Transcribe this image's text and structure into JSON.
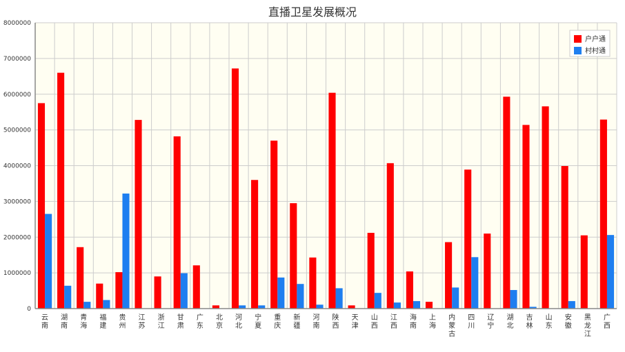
{
  "chart_data": {
    "type": "bar",
    "title": "直播卫星发展概况",
    "categories": [
      "云南",
      "湖南",
      "青海",
      "福建",
      "贵州",
      "江苏",
      "浙江",
      "甘肃",
      "广东",
      "北京",
      "河北",
      "宁夏",
      "重庆",
      "新疆",
      "河南",
      "陕西",
      "天津",
      "山西",
      "江西",
      "海南",
      "上海",
      "内蒙古",
      "四川",
      "辽宁",
      "湖北",
      "吉林",
      "山东",
      "安徽",
      "黑龙江",
      "广西"
    ],
    "series": [
      {
        "name": "户户通",
        "color": "#ff0000",
        "values": [
          5750000,
          6600000,
          1720000,
          700000,
          1020000,
          5280000,
          900000,
          4820000,
          1210000,
          90000,
          6720000,
          3600000,
          4700000,
          2950000,
          1430000,
          6040000,
          90000,
          2120000,
          4070000,
          1040000,
          190000,
          1860000,
          3890000,
          2100000,
          5930000,
          5140000,
          5660000,
          3990000,
          2050000,
          5290000
        ]
      },
      {
        "name": "村村通",
        "color": "#1e7ef0",
        "values": [
          2650000,
          640000,
          190000,
          240000,
          3220000,
          0,
          0,
          990000,
          0,
          0,
          90000,
          90000,
          870000,
          690000,
          110000,
          570000,
          0,
          440000,
          170000,
          210000,
          0,
          590000,
          1440000,
          0,
          520000,
          50000,
          0,
          210000,
          0,
          2060000
        ]
      }
    ],
    "ylim": [
      0,
      8000000
    ],
    "yticks": [
      "0",
      "1000000",
      "2000000",
      "3000000",
      "4000000",
      "5000000",
      "6000000",
      "7000000",
      "8000000"
    ],
    "xlabel": "",
    "ylabel": "",
    "grid": true,
    "legend": "top-right",
    "plot_bg": "#fffef2",
    "grid_color": "#cccccc"
  }
}
